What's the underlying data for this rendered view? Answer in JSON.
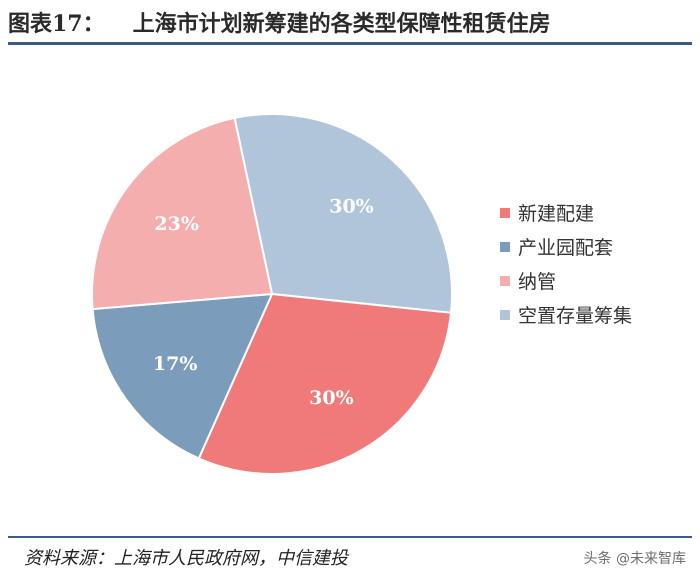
{
  "header": {
    "figure_no": "图表17：",
    "title": "上海市计划新筹建的各类型保障性租赁住房"
  },
  "footer": {
    "source": "资料来源：上海市人民政府网，中信建投",
    "watermark": "头条 @未来智库"
  },
  "chart_data": {
    "type": "pie",
    "start_angle_deg": -12,
    "direction": "clockwise",
    "slices": [
      {
        "label": "空置存量筹集",
        "value": 30,
        "value_label": "30%",
        "color": "#b0c4da"
      },
      {
        "label": "新建配建",
        "value": 30,
        "value_label": "30%",
        "color": "#f07a7a"
      },
      {
        "label": "产业园配套",
        "value": 17,
        "value_label": "17%",
        "color": "#7b9cbb"
      },
      {
        "label": "纳管",
        "value": 23,
        "value_label": "23%",
        "color": "#f5aeae"
      }
    ],
    "legend_order": [
      "新建配建",
      "产业园配套",
      "纳管",
      "空置存量筹集"
    ],
    "legend_position": "right"
  }
}
